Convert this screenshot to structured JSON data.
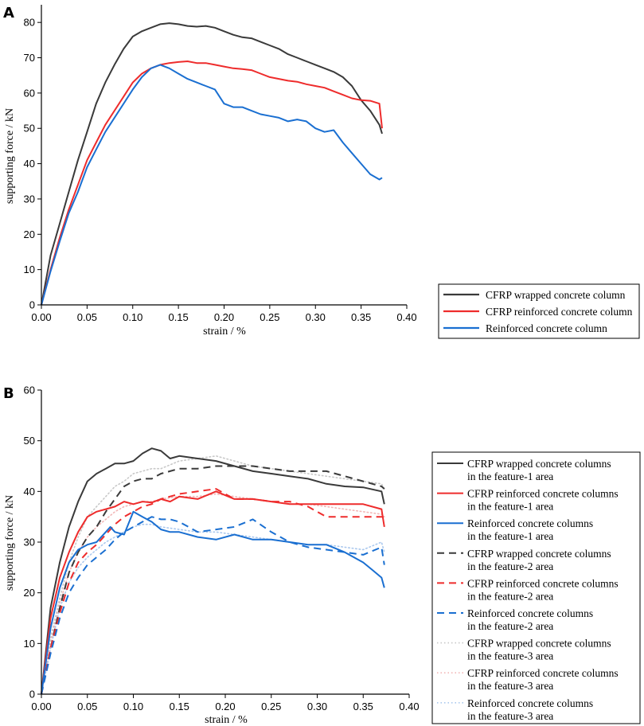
{
  "chart_data": [
    {
      "panel_label": "A",
      "type": "line",
      "xlabel": "strain / %",
      "ylabel": "supporting force / kN",
      "xlim": [
        0,
        0.4
      ],
      "ylim": [
        0,
        85
      ],
      "xticks": [
        0.0,
        0.05,
        0.1,
        0.15,
        0.2,
        0.25,
        0.3,
        0.35,
        0.4
      ],
      "xtick_labels": [
        "0.00",
        "0.05",
        "0.10",
        "0.15",
        "0.20",
        "0.25",
        "0.30",
        "0.35",
        "0.40"
      ],
      "yticks": [
        0,
        10,
        20,
        30,
        40,
        50,
        60,
        70,
        80
      ],
      "ytick_labels": [
        "0",
        "10",
        "20",
        "30",
        "40",
        "50",
        "60",
        "70",
        "80"
      ],
      "legend_position": "bottom-right outside",
      "series": [
        {
          "name": "CFRP wrapped concrete column",
          "color": "#3a3a3a",
          "style": "solid",
          "x": [
            0,
            0.01,
            0.02,
            0.03,
            0.04,
            0.05,
            0.06,
            0.07,
            0.08,
            0.09,
            0.1,
            0.11,
            0.12,
            0.13,
            0.14,
            0.15,
            0.16,
            0.17,
            0.18,
            0.19,
            0.2,
            0.21,
            0.22,
            0.23,
            0.24,
            0.25,
            0.26,
            0.27,
            0.28,
            0.29,
            0.3,
            0.31,
            0.32,
            0.33,
            0.34,
            0.35,
            0.36,
            0.37,
            0.373
          ],
          "y": [
            0,
            14,
            23,
            32,
            41,
            49,
            57,
            63,
            68,
            72.5,
            76,
            77.5,
            78.5,
            79.5,
            79.8,
            79.5,
            79,
            78.8,
            79,
            78.5,
            77.5,
            76.5,
            75.8,
            75.5,
            74.5,
            73.5,
            72.5,
            71,
            70,
            69,
            68,
            67,
            66,
            64.5,
            62,
            58,
            55,
            51,
            48.5
          ]
        },
        {
          "name": "CFRP reinforced concrete column",
          "color": "#ee2c2c",
          "style": "solid",
          "x": [
            0,
            0.01,
            0.02,
            0.03,
            0.04,
            0.05,
            0.06,
            0.07,
            0.08,
            0.09,
            0.1,
            0.11,
            0.12,
            0.13,
            0.14,
            0.15,
            0.16,
            0.17,
            0.18,
            0.19,
            0.2,
            0.21,
            0.22,
            0.23,
            0.24,
            0.25,
            0.26,
            0.27,
            0.28,
            0.29,
            0.3,
            0.31,
            0.32,
            0.33,
            0.34,
            0.35,
            0.36,
            0.37,
            0.373
          ],
          "y": [
            0,
            10,
            19,
            27,
            34,
            41,
            46,
            51,
            55,
            59,
            63,
            65.5,
            67,
            68,
            68.5,
            68.8,
            69,
            68.5,
            68.5,
            68,
            67.5,
            67,
            66.8,
            66.5,
            65.5,
            64.5,
            64,
            63.5,
            63.2,
            62.5,
            62,
            61.5,
            60.5,
            59.5,
            58.5,
            58,
            57.8,
            57,
            50
          ]
        },
        {
          "name": "Reinforced concrete column",
          "color": "#1a6fd1",
          "style": "solid",
          "x": [
            0,
            0.01,
            0.02,
            0.03,
            0.04,
            0.05,
            0.06,
            0.07,
            0.08,
            0.09,
            0.1,
            0.11,
            0.12,
            0.13,
            0.14,
            0.15,
            0.16,
            0.17,
            0.18,
            0.19,
            0.2,
            0.21,
            0.22,
            0.23,
            0.24,
            0.25,
            0.26,
            0.27,
            0.28,
            0.29,
            0.3,
            0.31,
            0.32,
            0.33,
            0.34,
            0.35,
            0.36,
            0.37,
            0.373
          ],
          "y": [
            0,
            9.5,
            18,
            26,
            32,
            39,
            44,
            49,
            53,
            57,
            61,
            64.5,
            67,
            68,
            67,
            65.5,
            64,
            63,
            62,
            61,
            57,
            56,
            56,
            55,
            54,
            53.5,
            53,
            52,
            52.5,
            52,
            50,
            49,
            49.5,
            46,
            43,
            40,
            37,
            35.5,
            36
          ]
        }
      ]
    },
    {
      "panel_label": "B",
      "type": "line",
      "xlabel": "strain / %",
      "ylabel": "supporting force / kN",
      "xlim": [
        0,
        0.4
      ],
      "ylim": [
        0,
        60
      ],
      "xticks": [
        0.0,
        0.05,
        0.1,
        0.15,
        0.2,
        0.25,
        0.3,
        0.35,
        0.4
      ],
      "xtick_labels": [
        "0.00",
        "0.05",
        "0.10",
        "0.15",
        "0.20",
        "0.25",
        "0.30",
        "0.35",
        "0.40"
      ],
      "yticks": [
        0,
        10,
        20,
        30,
        40,
        50,
        60
      ],
      "ytick_labels": [
        "0",
        "10",
        "20",
        "30",
        "40",
        "50",
        "60"
      ],
      "legend_position": "right outside",
      "series": [
        {
          "name_line1": "CFRP wrapped concrete columns",
          "name_line2": "in the feature-1 area",
          "color": "#3a3a3a",
          "style": "solid",
          "x": [
            0,
            0.01,
            0.02,
            0.03,
            0.04,
            0.05,
            0.06,
            0.07,
            0.08,
            0.09,
            0.1,
            0.11,
            0.12,
            0.13,
            0.14,
            0.15,
            0.17,
            0.19,
            0.21,
            0.23,
            0.25,
            0.27,
            0.29,
            0.31,
            0.33,
            0.35,
            0.37,
            0.373
          ],
          "y": [
            0,
            17,
            26,
            33,
            38,
            42,
            43.5,
            44.5,
            45.5,
            45.5,
            46,
            47.5,
            48.5,
            48,
            46.5,
            47,
            46.5,
            46,
            45,
            44,
            43.5,
            43,
            42.5,
            41.5,
            41,
            40.8,
            40,
            37.5
          ]
        },
        {
          "name_line1": "CFRP reinforced concrete columns",
          "name_line2": "in the feature-1 area",
          "color": "#ee2c2c",
          "style": "solid",
          "x": [
            0,
            0.01,
            0.02,
            0.03,
            0.04,
            0.05,
            0.06,
            0.07,
            0.08,
            0.09,
            0.1,
            0.11,
            0.12,
            0.13,
            0.14,
            0.15,
            0.17,
            0.19,
            0.21,
            0.23,
            0.25,
            0.27,
            0.29,
            0.31,
            0.33,
            0.35,
            0.37,
            0.373
          ],
          "y": [
            0,
            15,
            23,
            28,
            32,
            35,
            36,
            36.5,
            37,
            38,
            37.5,
            38,
            37.8,
            38.5,
            38,
            39,
            38.5,
            40,
            38.5,
            38.5,
            38,
            37.5,
            37.5,
            37.5,
            37.5,
            37.5,
            36.5,
            33
          ]
        },
        {
          "name_line1": "Reinforced concrete columns",
          "name_line2": "in the feature-1 area",
          "color": "#1a6fd1",
          "style": "solid",
          "x": [
            0,
            0.01,
            0.02,
            0.03,
            0.04,
            0.05,
            0.06,
            0.07,
            0.075,
            0.08,
            0.09,
            0.1,
            0.11,
            0.12,
            0.13,
            0.14,
            0.15,
            0.17,
            0.19,
            0.21,
            0.23,
            0.25,
            0.27,
            0.29,
            0.31,
            0.33,
            0.35,
            0.36,
            0.37,
            0.373
          ],
          "y": [
            0,
            13,
            21,
            26,
            28.5,
            29.5,
            30,
            32,
            33,
            32,
            31.5,
            36,
            35,
            34,
            32.5,
            32,
            32,
            31,
            30.5,
            31.5,
            30.5,
            30.5,
            30,
            29.5,
            29.5,
            28,
            26,
            24.5,
            23,
            21
          ]
        },
        {
          "name_line1": "CFRP wrapped concrete columns",
          "name_line2": "in the feature-2 area",
          "color": "#3a3a3a",
          "style": "dashed",
          "x": [
            0,
            0.01,
            0.02,
            0.03,
            0.04,
            0.05,
            0.06,
            0.07,
            0.08,
            0.09,
            0.1,
            0.11,
            0.12,
            0.13,
            0.14,
            0.15,
            0.17,
            0.19,
            0.21,
            0.23,
            0.25,
            0.27,
            0.29,
            0.31,
            0.33,
            0.35,
            0.37,
            0.373
          ],
          "y": [
            0,
            9,
            17,
            24,
            28,
            31,
            33,
            36,
            38.5,
            41,
            42,
            42.5,
            42.5,
            43.5,
            44,
            44.5,
            44.5,
            45,
            45,
            45,
            44.5,
            44,
            44,
            44,
            43,
            42,
            41,
            40.5
          ]
        },
        {
          "name_line1": "CFRP reinforced concrete columns",
          "name_line2": "in the feature-2 area",
          "color": "#ee2c2c",
          "style": "dashed",
          "x": [
            0,
            0.01,
            0.02,
            0.03,
            0.04,
            0.05,
            0.06,
            0.07,
            0.08,
            0.09,
            0.1,
            0.11,
            0.12,
            0.13,
            0.14,
            0.15,
            0.17,
            0.19,
            0.21,
            0.23,
            0.25,
            0.27,
            0.29,
            0.31,
            0.33,
            0.35,
            0.37,
            0.373
          ],
          "y": [
            0,
            9,
            16,
            22,
            26,
            28,
            29.5,
            31.5,
            33.5,
            35,
            36,
            37,
            37.5,
            38.5,
            39,
            39.5,
            40,
            40.5,
            38.5,
            38.5,
            38,
            38,
            37,
            35,
            35,
            35,
            35,
            35
          ]
        },
        {
          "name_line1": "Reinforced concrete columns",
          "name_line2": "in the feature-2 area",
          "color": "#1a6fd1",
          "style": "dashed",
          "x": [
            0,
            0.01,
            0.02,
            0.03,
            0.04,
            0.05,
            0.06,
            0.07,
            0.08,
            0.09,
            0.1,
            0.11,
            0.12,
            0.13,
            0.14,
            0.15,
            0.17,
            0.19,
            0.21,
            0.23,
            0.25,
            0.27,
            0.29,
            0.31,
            0.33,
            0.35,
            0.37,
            0.373
          ],
          "y": [
            0,
            8,
            15,
            20,
            23,
            25.5,
            27,
            28.5,
            30.5,
            32,
            33,
            34,
            35,
            34.5,
            34.5,
            34,
            32,
            32.5,
            33,
            34.5,
            32,
            30,
            29,
            28.5,
            28,
            27.5,
            29,
            25.5
          ]
        },
        {
          "name_line1": "CFRP wrapped concrete columns",
          "name_line2": "in the feature-3 area",
          "color": "#c8c8c8",
          "style": "dotted",
          "x": [
            0,
            0.01,
            0.02,
            0.03,
            0.04,
            0.05,
            0.06,
            0.07,
            0.08,
            0.09,
            0.1,
            0.11,
            0.12,
            0.13,
            0.15,
            0.17,
            0.19,
            0.21,
            0.23,
            0.25,
            0.27,
            0.29,
            0.31,
            0.33,
            0.35,
            0.37,
            0.373
          ],
          "y": [
            0,
            11,
            19,
            26,
            31,
            35,
            37,
            39,
            41,
            42,
            43.5,
            44,
            44.5,
            44.5,
            46,
            46.5,
            47,
            46,
            45,
            44.5,
            44,
            43.5,
            43,
            42.5,
            42,
            41.5,
            40.5
          ]
        },
        {
          "name_line1": "CFRP reinforced concrete columns",
          "name_line2": "in the feature-3 area",
          "color": "#f2b6b6",
          "style": "dotted",
          "x": [
            0,
            0.01,
            0.02,
            0.03,
            0.04,
            0.05,
            0.06,
            0.07,
            0.08,
            0.09,
            0.1,
            0.11,
            0.12,
            0.13,
            0.15,
            0.17,
            0.19,
            0.21,
            0.23,
            0.25,
            0.27,
            0.29,
            0.31,
            0.33,
            0.35,
            0.37,
            0.373
          ],
          "y": [
            0,
            10,
            18,
            24,
            28,
            31,
            33,
            34.5,
            36,
            37,
            37.5,
            38,
            38,
            38.5,
            39,
            39,
            39.5,
            39,
            38.5,
            38,
            37.5,
            37.5,
            37,
            36.5,
            36,
            35.5,
            35
          ]
        },
        {
          "name_line1": "Reinforced concrete columns",
          "name_line2": "in the feature-3 area",
          "color": "#aac8ee",
          "style": "dotted",
          "x": [
            0,
            0.01,
            0.02,
            0.03,
            0.04,
            0.05,
            0.06,
            0.07,
            0.08,
            0.09,
            0.1,
            0.11,
            0.12,
            0.13,
            0.15,
            0.17,
            0.19,
            0.21,
            0.23,
            0.25,
            0.27,
            0.29,
            0.31,
            0.33,
            0.35,
            0.37,
            0.373
          ],
          "y": [
            0,
            9,
            17,
            22,
            25,
            27,
            28.5,
            30,
            31,
            32,
            33,
            33.5,
            33.5,
            33,
            32.5,
            32,
            32,
            31.5,
            31,
            30.5,
            30,
            29.5,
            29.5,
            29,
            28.5,
            30,
            28
          ]
        }
      ]
    }
  ]
}
